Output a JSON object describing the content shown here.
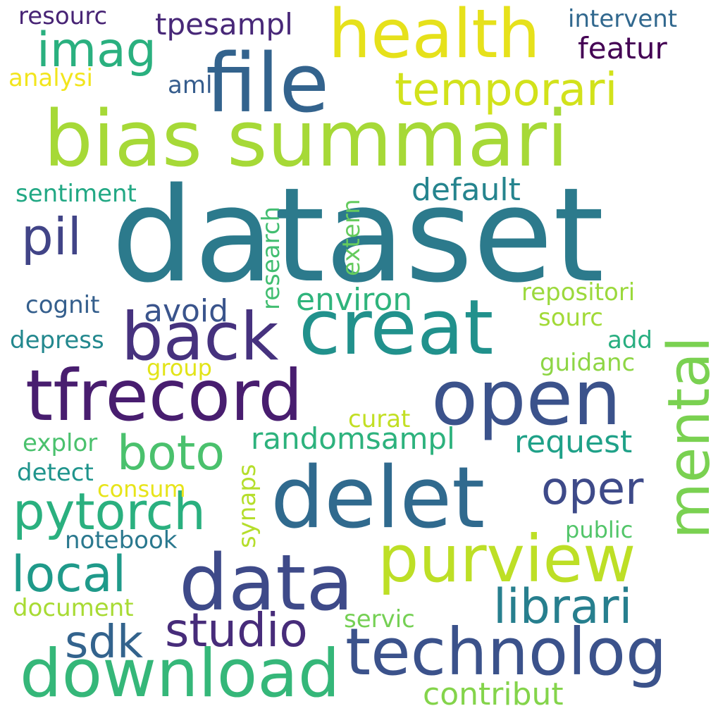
{
  "words": {
    "dataset": {
      "text": "dataset",
      "color": "#2c7a8c"
    },
    "bias_summari": {
      "text": "bias summari",
      "color": "#a6d937"
    },
    "file": {
      "text": "file",
      "color": "#33638d"
    },
    "health": {
      "text": "health",
      "color": "#e6e11b"
    },
    "creat": {
      "text": "creat",
      "color": "#21918c"
    },
    "back": {
      "text": "back",
      "color": "#46327e"
    },
    "tfrecord": {
      "text": "tfrecord",
      "color": "#481d6f"
    },
    "open": {
      "text": "open",
      "color": "#3b528b"
    },
    "mental": {
      "text": "mental",
      "color": "#7ad151"
    },
    "delet": {
      "text": "delet",
      "color": "#306a8e"
    },
    "data": {
      "text": "data",
      "color": "#3e4a89"
    },
    "purview": {
      "text": "purview",
      "color": "#bddf26"
    },
    "technolog": {
      "text": "technolog",
      "color": "#3b528b"
    },
    "download": {
      "text": "download",
      "color": "#35b779"
    },
    "imag": {
      "text": "imag",
      "color": "#2ab07f"
    },
    "temporari": {
      "text": "temporari",
      "color": "#d2e21b"
    },
    "pil": {
      "text": "pil",
      "color": "#414487"
    },
    "pytorch": {
      "text": "pytorch",
      "color": "#2ab07f"
    },
    "local": {
      "text": "local",
      "color": "#1f9a8a"
    },
    "boto": {
      "text": "boto",
      "color": "#4ac16d"
    },
    "studio": {
      "text": "studio",
      "color": "#472c7a"
    },
    "librari": {
      "text": "librari",
      "color": "#277f8e"
    },
    "sdk": {
      "text": "sdk",
      "color": "#33638d"
    },
    "oper": {
      "text": "oper",
      "color": "#3e4a89"
    },
    "tpesampl": {
      "text": "tpesampl",
      "color": "#482878"
    },
    "featur": {
      "text": "featur",
      "color": "#440154"
    },
    "default": {
      "text": "default",
      "color": "#25848e"
    },
    "environ": {
      "text": "environ",
      "color": "#2fb47c"
    },
    "avoid": {
      "text": "avoid",
      "color": "#3a548c"
    },
    "randomsampl": {
      "text": "randomsampl",
      "color": "#2db27d"
    },
    "request": {
      "text": "request",
      "color": "#1fa188"
    },
    "contribut": {
      "text": "contribut",
      "color": "#84d44b"
    },
    "resourc": {
      "text": "resourc",
      "color": "#482475"
    },
    "intervent": {
      "text": "intervent",
      "color": "#31688e"
    },
    "analysi": {
      "text": "analysi",
      "color": "#f2e51d"
    },
    "aml": {
      "text": "aml",
      "color": "#365d8d"
    },
    "sentiment": {
      "text": "sentiment",
      "color": "#22a884"
    },
    "research": {
      "text": "research",
      "color": "#42be71"
    },
    "extern": {
      "text": "extern",
      "color": "#65cb5e"
    },
    "cognit": {
      "text": "cognit",
      "color": "#355f8d"
    },
    "depress": {
      "text": "depress",
      "color": "#23888e"
    },
    "group": {
      "text": "group",
      "color": "#e2e418"
    },
    "repositori": {
      "text": "repositori",
      "color": "#9bd93c"
    },
    "sourc": {
      "text": "sourc",
      "color": "#a2da37"
    },
    "add": {
      "text": "add",
      "color": "#28ae80"
    },
    "guidanc": {
      "text": "guidanc",
      "color": "#8ed645"
    },
    "curat": {
      "text": "curat",
      "color": "#c2df23"
    },
    "explor": {
      "text": "explor",
      "color": "#4ac16d"
    },
    "detect": {
      "text": "detect",
      "color": "#1f948c"
    },
    "consum": {
      "text": "consum",
      "color": "#e7e419"
    },
    "synaps": {
      "text": "synaps",
      "color": "#b5de2b"
    },
    "notebook": {
      "text": "notebook",
      "color": "#2a788e"
    },
    "public": {
      "text": "public",
      "color": "#52c569"
    },
    "document": {
      "text": "document",
      "color": "#a8db34"
    },
    "servic": {
      "text": "servic",
      "color": "#75d054"
    }
  }
}
